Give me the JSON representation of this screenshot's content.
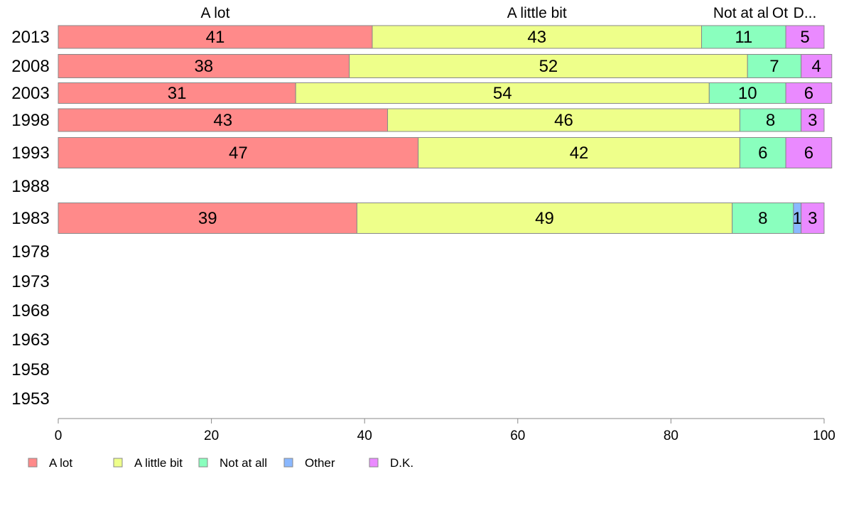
{
  "chart_data": {
    "type": "bar",
    "orientation": "horizontal",
    "stacked": true,
    "title": "",
    "xlabel": "",
    "ylabel": "",
    "xlim": [
      0,
      100
    ],
    "x_ticks": [
      0,
      20,
      40,
      60,
      80,
      100
    ],
    "grid": false,
    "legend_position": "bottom",
    "categories": [
      "2013",
      "2008",
      "2003",
      "1998",
      "1993",
      "1988",
      "1983",
      "1978",
      "1973",
      "1968",
      "1963",
      "1958",
      "1953"
    ],
    "series": [
      {
        "name": "A lot",
        "color": "#ff8a8a",
        "values": [
          41,
          38,
          31,
          43,
          47,
          null,
          39,
          null,
          null,
          null,
          null,
          null,
          null
        ]
      },
      {
        "name": "A little bit",
        "color": "#eeff8a",
        "values": [
          43,
          52,
          54,
          46,
          42,
          null,
          49,
          null,
          null,
          null,
          null,
          null,
          null
        ]
      },
      {
        "name": "Not at all",
        "color": "#8affbe",
        "values": [
          11,
          7,
          10,
          8,
          6,
          null,
          8,
          null,
          null,
          null,
          null,
          null,
          null
        ]
      },
      {
        "name": "Other",
        "color": "#8ab8ff",
        "values": [
          0,
          0,
          0,
          0,
          0,
          null,
          1,
          null,
          null,
          null,
          null,
          null,
          null
        ]
      },
      {
        "name": "D.K.",
        "color": "#ea8aff",
        "values": [
          5,
          4,
          6,
          3,
          6,
          null,
          3,
          null,
          null,
          null,
          null,
          null,
          null
        ]
      }
    ],
    "top_labels": [
      "A lot",
      "A little bit",
      "Not at al",
      "Ot",
      "D..."
    ]
  }
}
